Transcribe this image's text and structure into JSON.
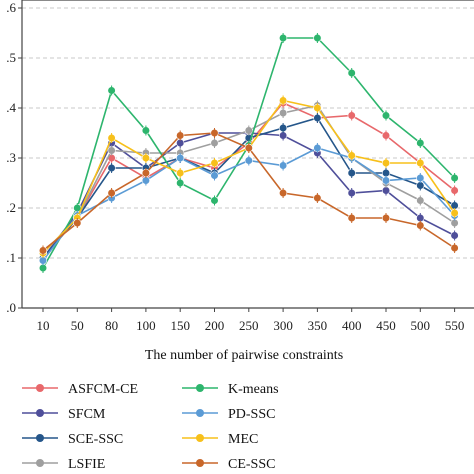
{
  "chart_data": {
    "type": "line",
    "title": "",
    "xlabel": "The number of pairwise constraints",
    "ylabel": "",
    "categories": [
      "10",
      "50",
      "80",
      "100",
      "150",
      "200",
      "250",
      "300",
      "350",
      "400",
      "450",
      "500",
      "550"
    ],
    "ylim": [
      0.0,
      0.6
    ],
    "y_ticks": [
      0.0,
      0.1,
      0.2,
      0.3,
      0.4,
      0.5,
      0.6
    ],
    "y_tick_labels": [
      ".0",
      ".1",
      ".2",
      ".3",
      ".4",
      ".5",
      ".6"
    ],
    "grid": "horizontal dashed",
    "legend_position": "bottom",
    "series": [
      {
        "name": "ASFCM-CE",
        "color": "#e8686b",
        "marker": "circle",
        "values": [
          0.1,
          0.18,
          0.3,
          0.26,
          0.3,
          0.28,
          0.33,
          0.41,
          0.38,
          0.385,
          0.345,
          0.29,
          0.235
        ]
      },
      {
        "name": "SFCM",
        "color": "#4f4f9a",
        "marker": "circle",
        "values": [
          0.1,
          0.19,
          0.33,
          0.28,
          0.33,
          0.35,
          0.35,
          0.345,
          0.31,
          0.23,
          0.235,
          0.18,
          0.145
        ]
      },
      {
        "name": "SCE-SSC",
        "color": "#25568a",
        "marker": "circle",
        "values": [
          0.1,
          0.18,
          0.28,
          0.28,
          0.3,
          0.27,
          0.34,
          0.36,
          0.38,
          0.27,
          0.27,
          0.245,
          0.205
        ]
      },
      {
        "name": "LSFIE",
        "color": "#9f9f9f",
        "marker": "circle",
        "values": [
          0.11,
          0.18,
          0.315,
          0.31,
          0.31,
          0.33,
          0.355,
          0.39,
          0.405,
          0.3,
          0.25,
          0.215,
          0.17
        ]
      },
      {
        "name": "K-means",
        "color": "#2db56d",
        "marker": "circle",
        "values": [
          0.08,
          0.2,
          0.435,
          0.355,
          0.25,
          0.215,
          0.325,
          0.54,
          0.54,
          0.47,
          0.385,
          0.33,
          0.26
        ]
      },
      {
        "name": "PD-SSC",
        "color": "#5b9bd5",
        "marker": "circle",
        "values": [
          0.095,
          0.185,
          0.22,
          0.255,
          0.3,
          0.265,
          0.295,
          0.285,
          0.32,
          0.3,
          0.255,
          0.26,
          0.185
        ]
      },
      {
        "name": "MEC",
        "color": "#f7c01b",
        "marker": "circle",
        "values": [
          0.11,
          0.18,
          0.34,
          0.3,
          0.27,
          0.29,
          0.32,
          0.415,
          0.4,
          0.305,
          0.29,
          0.29,
          0.19
        ]
      },
      {
        "name": "CE-SSC",
        "color": "#c8672a",
        "marker": "circle",
        "values": [
          0.115,
          0.17,
          0.23,
          0.27,
          0.345,
          0.35,
          0.32,
          0.23,
          0.22,
          0.18,
          0.18,
          0.165,
          0.12
        ]
      }
    ]
  }
}
